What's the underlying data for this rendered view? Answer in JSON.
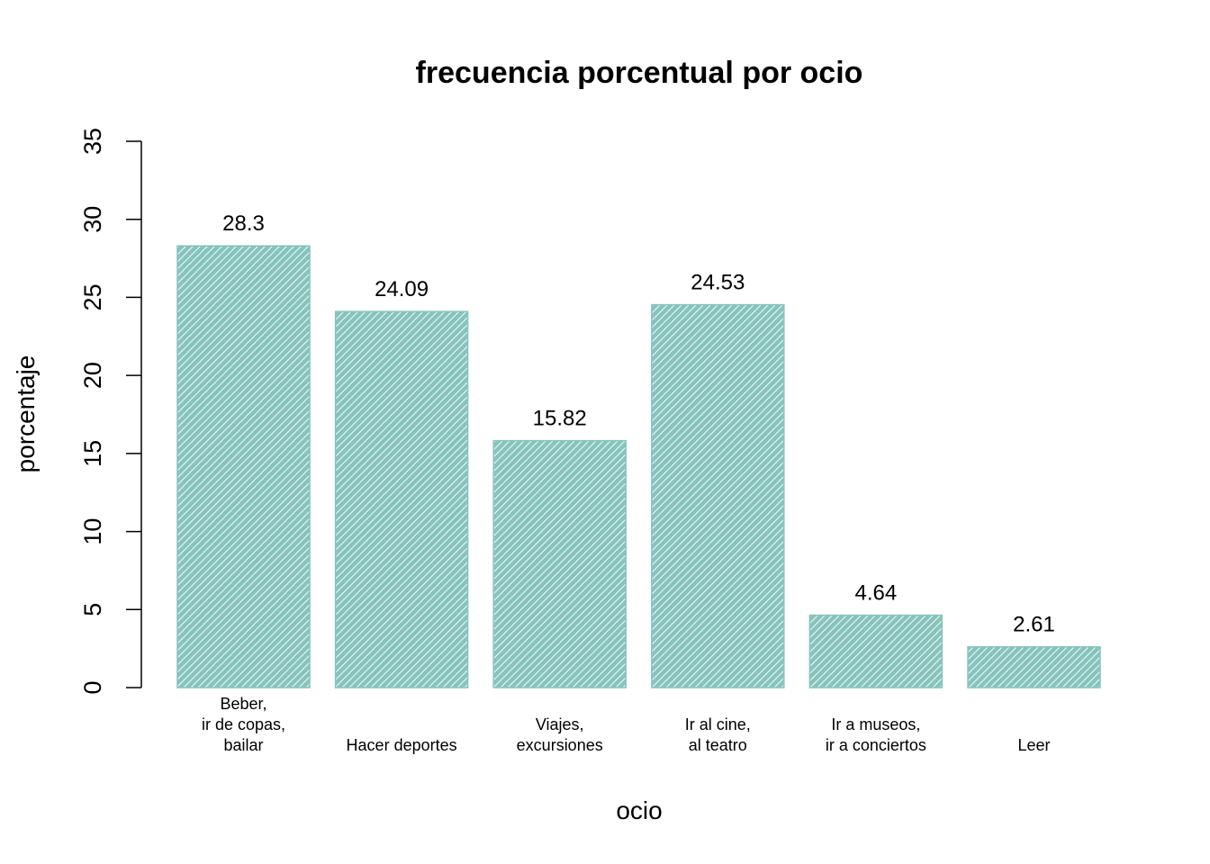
{
  "chart_data": {
    "type": "bar",
    "title": "frecuencia porcentual por ocio",
    "xlabel": "ocio",
    "ylabel": "porcentaje",
    "ylim": [
      0,
      35
    ],
    "yticks": [
      0,
      5,
      10,
      15,
      20,
      25,
      30,
      35
    ],
    "categories": [
      [
        "Beber,",
        "ir de copas,",
        "bailar"
      ],
      [
        "Hacer deportes"
      ],
      [
        "Viajes,",
        "excursiones"
      ],
      [
        "Ir al cine,",
        "al teatro"
      ],
      [
        "Ir a museos,",
        "ir a conciertos"
      ],
      [
        "Leer"
      ]
    ],
    "values": [
      28.3,
      24.09,
      15.82,
      24.53,
      4.64,
      2.61
    ],
    "data_labels": [
      "28.3",
      "24.09",
      "15.82",
      "24.53",
      "4.64",
      "2.61"
    ],
    "bar_color": "#86c4bc",
    "hatch_color": "#ffffff",
    "grid": false
  }
}
